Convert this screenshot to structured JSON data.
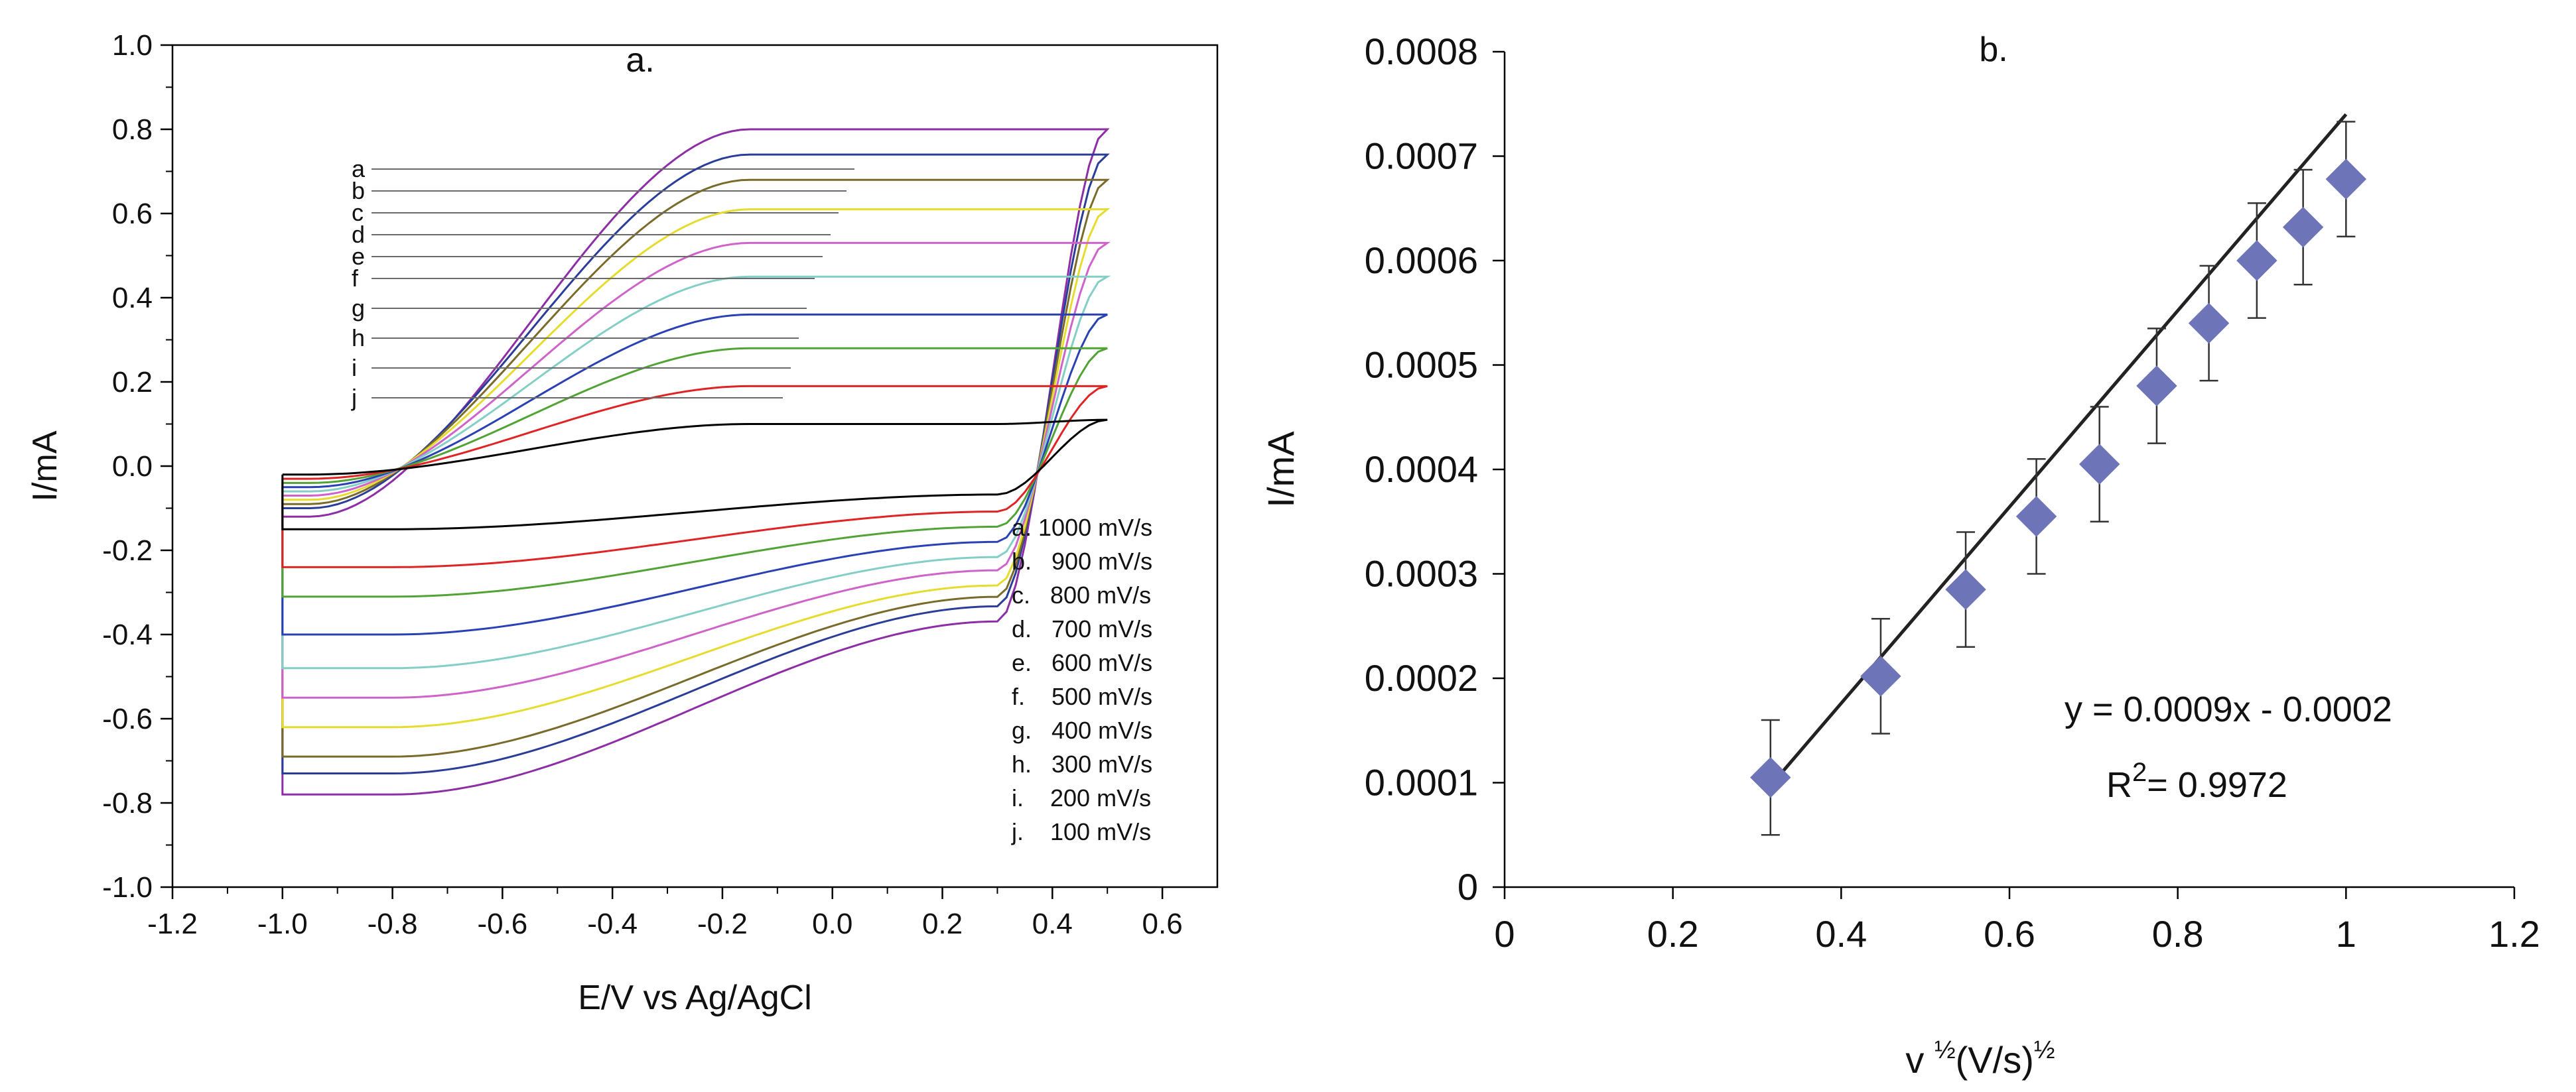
{
  "chart_data": [
    {
      "type": "line",
      "title": "a.",
      "xlabel": "E/V vs Ag/AgCl",
      "ylabel": "I/mA",
      "xlim": [
        -1.2,
        0.7
      ],
      "ylim": [
        -1.0,
        1.0
      ],
      "x_ticks": [
        -1.2,
        -1.0,
        -0.8,
        -0.6,
        -0.4,
        -0.2,
        0.0,
        0.2,
        0.4,
        0.6
      ],
      "x_tick_labels": [
        "-1.2",
        "-1.0",
        "-0.8",
        "-0.6",
        "-0.4",
        "-0.2",
        "0.0",
        "0.2",
        "0.4",
        "0.6"
      ],
      "y_ticks": [
        -1.0,
        -0.8,
        -0.6,
        -0.4,
        -0.2,
        0.0,
        0.2,
        0.4,
        0.6,
        0.8,
        1.0
      ],
      "y_tick_labels": [
        "-1.0",
        "-0.8",
        "-0.6",
        "-0.4",
        "-0.2",
        "0.0",
        "0.2",
        "0.4",
        "0.6",
        "0.8",
        "1.0"
      ],
      "potential_window": [
        -1.0,
        0.5
      ],
      "legend": {
        "position": "bottom-right",
        "entries": [
          "a. 1000 mV/s",
          "b.   900 mV/s",
          "c.   800 mV/s",
          "d.   700 mV/s",
          "e.   600 mV/s",
          "f.    500 mV/s",
          "g.   400 mV/s",
          "h.   300 mV/s",
          "i.    200 mV/s",
          "j.    100 mV/s"
        ]
      },
      "series": [
        {
          "name": "a",
          "scan_rate_mV_s": 1000,
          "color": "#8e2ea6",
          "anodic_plateau": 0.8,
          "cathodic_plateau": -0.82,
          "start_current": -0.12,
          "end_current": 0.8,
          "cathodic_peak": -0.78
        },
        {
          "name": "b",
          "scan_rate_mV_s": 900,
          "color": "#2a3d99",
          "anodic_plateau": 0.74,
          "cathodic_plateau": -0.74,
          "start_current": -0.1,
          "end_current": 0.74,
          "cathodic_peak": -0.73
        },
        {
          "name": "c",
          "scan_rate_mV_s": 800,
          "color": "#7a6b2a",
          "anodic_plateau": 0.68,
          "cathodic_plateau": -0.69,
          "start_current": -0.09,
          "end_current": 0.68,
          "cathodic_peak": -0.69
        },
        {
          "name": "d",
          "scan_rate_mV_s": 700,
          "color": "#e6dc2e",
          "anodic_plateau": 0.61,
          "cathodic_plateau": -0.63,
          "start_current": -0.08,
          "end_current": 0.61,
          "cathodic_peak": -0.62
        },
        {
          "name": "e",
          "scan_rate_mV_s": 600,
          "color": "#cf63c9",
          "anodic_plateau": 0.53,
          "cathodic_plateau": -0.55,
          "start_current": -0.07,
          "end_current": 0.53,
          "cathodic_peak": -0.55
        },
        {
          "name": "f",
          "scan_rate_mV_s": 500,
          "color": "#83cfc6",
          "anodic_plateau": 0.45,
          "cathodic_plateau": -0.48,
          "start_current": -0.06,
          "end_current": 0.45,
          "cathodic_peak": -0.48
        },
        {
          "name": "g",
          "scan_rate_mV_s": 400,
          "color": "#2a41b5",
          "anodic_plateau": 0.36,
          "cathodic_plateau": -0.4,
          "start_current": -0.05,
          "end_current": 0.36,
          "cathodic_peak": -0.4
        },
        {
          "name": "h",
          "scan_rate_mV_s": 300,
          "color": "#52a335",
          "anodic_plateau": 0.28,
          "cathodic_plateau": -0.32,
          "start_current": -0.04,
          "end_current": 0.28,
          "cathodic_peak": -0.31
        },
        {
          "name": "i",
          "scan_rate_mV_s": 200,
          "color": "#e02424",
          "anodic_plateau": 0.19,
          "cathodic_plateau": -0.24,
          "start_current": -0.03,
          "end_current": 0.19,
          "cathodic_peak": -0.24
        },
        {
          "name": "j",
          "scan_rate_mV_s": 100,
          "color": "#000000",
          "anodic_plateau": 0.1,
          "cathodic_plateau": -0.15,
          "start_current": -0.02,
          "end_current": 0.11,
          "cathodic_peak": -0.15
        }
      ]
    },
    {
      "type": "scatter",
      "title": "b.",
      "xlabel_base": "v",
      "xlabel_half": "½",
      "xlabel_unit": "(V/s)",
      "ylabel": "I/mA",
      "xlim": [
        0,
        1.2
      ],
      "ylim": [
        0,
        0.0008
      ],
      "x_ticks": [
        0,
        0.2,
        0.4,
        0.6,
        0.8,
        1.0,
        1.2
      ],
      "x_tick_labels": [
        "0",
        "0.2",
        "0.4",
        "0.6",
        "0.8",
        "1",
        "1.2"
      ],
      "y_ticks": [
        0,
        0.0001,
        0.0002,
        0.0003,
        0.0004,
        0.0005,
        0.0006,
        0.0007,
        0.0008
      ],
      "y_tick_labels": [
        "0",
        "0.0001",
        "0.0002",
        "0.0003",
        "0.0004",
        "0.0005",
        "0.0006",
        "0.0007",
        "0.0008"
      ],
      "marker_color": "#6e74b8",
      "x": [
        0.316,
        0.447,
        0.548,
        0.632,
        0.707,
        0.775,
        0.837,
        0.894,
        0.949,
        1.0
      ],
      "y": [
        0.000105,
        0.000202,
        0.000285,
        0.000355,
        0.000405,
        0.00048,
        0.00054,
        0.0006,
        0.000632,
        0.000678
      ],
      "error": [
        5.5e-05,
        5.5e-05,
        5.5e-05,
        5.5e-05,
        5.5e-05,
        5.5e-05,
        5.5e-05,
        5.5e-05,
        5.5e-05,
        5.5e-05
      ],
      "fit": {
        "slope": 0.00094,
        "intercept": -0.0002,
        "x_range": [
          0.316,
          1.0
        ]
      },
      "equation_label": "y = 0.0009x - 0.0002",
      "r2_prefix": "R",
      "r2_sup": "2",
      "r2_value": "= 0.9972"
    }
  ]
}
